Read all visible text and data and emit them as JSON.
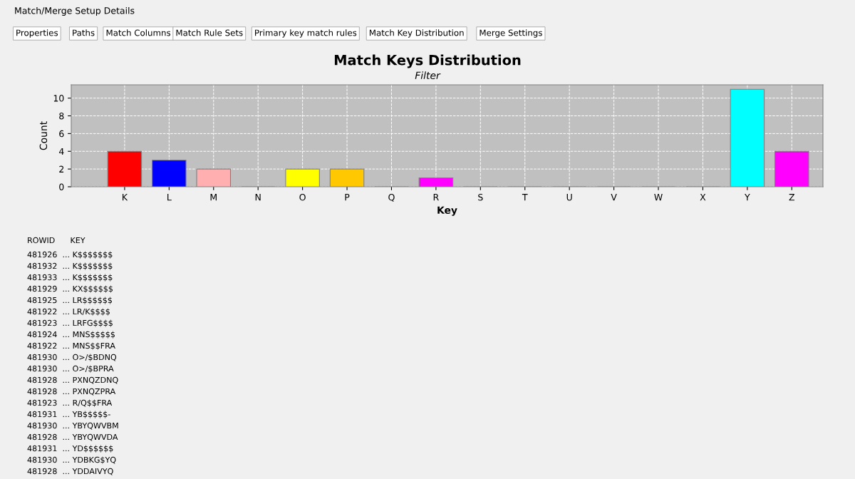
{
  "chart_data": {
    "type": "bar",
    "title": "Match Keys Distribution",
    "subtitle": "Filter",
    "xlabel": "Key",
    "ylabel": "Count",
    "categories": [
      "K",
      "L",
      "M",
      "N",
      "O",
      "P",
      "Q",
      "R",
      "S",
      "T",
      "U",
      "V",
      "W",
      "X",
      "Y",
      "Z"
    ],
    "values": [
      4,
      3,
      2,
      0,
      2,
      2,
      0,
      1,
      0,
      0,
      0,
      0,
      0,
      0,
      11,
      4
    ],
    "colors": [
      "#ff0000",
      "#0000ff",
      "#ffafaf",
      "#00ff00",
      "#ffff00",
      "#ffc800",
      "#808080",
      "#ff00ff",
      "#404040",
      "#ff0000",
      "#0000ff",
      "#00ff00",
      "#ffff00",
      "#ffc800",
      "#00ffff",
      "#ff00ff"
    ],
    "ylim": [
      0,
      11.5
    ],
    "yticks": [
      0,
      2,
      4,
      6,
      8,
      10
    ],
    "grid": true,
    "annotations": [
      "Match/Merge Setup Details",
      "Properties",
      "Paths",
      "Match Columns",
      "Match Rule Sets",
      "Primary key match rules",
      "Match Key Distribution",
      "Merge Settings",
      "ROWID      KEY",
      "481926  ... K$$$$$$$",
      "481932  ... K$$$$$$$",
      "481933  ... K$$$$$$$",
      "481929  ... KX$$$$$$",
      "481925  ... LR$$$$$$",
      "481922  ... LR/K$$$$",
      "481923  ... LRFG$$$$",
      "481924  ... MNS$$$$$",
      "481922  ... MNS$$FRA",
      "481930  ... O>/$BDNQ",
      "481930  ... O>/$BPRA",
      "481928  ... PXNQZDNQ",
      "481928  ... PXNQZPRA",
      "481923  ... R/Q$$FRA",
      "481931  ... YB$$$$$-",
      "481930  ... YBYQWVBM",
      "481928  ... YBYQWVDA",
      "481931  ... YD$$$$$$",
      "481930  ... YDBKG$YQ",
      "481928  ... YDDAIVYQ"
    ]
  }
}
